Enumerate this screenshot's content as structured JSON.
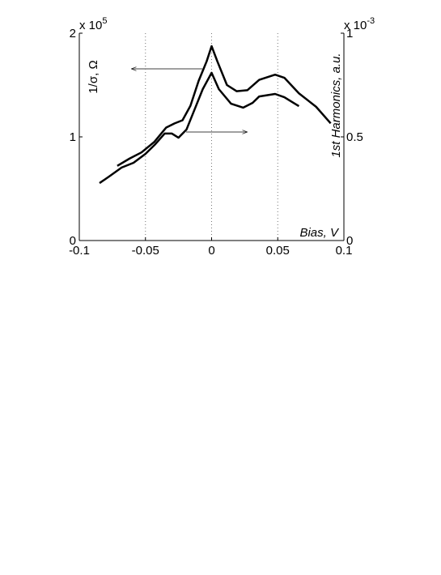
{
  "chart_data": {
    "type": "line",
    "xlabel": "Bias, V",
    "ylabel": "1/σ, Ω",
    "y2label": "1st Harmonics, a.u.",
    "y_multiplier": "x 10",
    "y_exponent": "5",
    "y2_multiplier": "x 10",
    "y2_exponent": "-3",
    "xlim": [
      -0.1,
      0.1
    ],
    "xticks": [
      -0.1,
      -0.05,
      0,
      0.05,
      0.1
    ],
    "ylim": [
      0,
      2
    ],
    "yticks": [
      0,
      1,
      2
    ],
    "y2lim": [
      0,
      1
    ],
    "y2ticks": [
      0,
      0.5,
      1
    ],
    "grid_x": [
      -0.05,
      0,
      0.05
    ],
    "series": [
      {
        "color": "#000000",
        "x": [
          -0.0713,
          -0.0621,
          -0.053,
          -0.0434,
          -0.0343,
          -0.028,
          -0.022,
          -0.016,
          -0.0098,
          -0.0037,
          0,
          0.0043,
          0.0116,
          0.019,
          0.027,
          0.036,
          0.048,
          0.055,
          0.066,
          0.079,
          0.09
        ],
        "values": [
          0.72,
          0.79,
          0.85,
          0.95,
          1.09,
          1.13,
          1.16,
          1.3,
          1.54,
          1.73,
          1.875,
          1.73,
          1.5,
          1.44,
          1.45,
          1.55,
          1.6,
          1.57,
          1.42,
          1.29,
          1.13
        ]
      },
      {
        "color": "#000000",
        "axis": "y2",
        "x": [
          -0.0847,
          -0.0774,
          -0.068,
          -0.059,
          -0.05,
          -0.0425,
          -0.0355,
          -0.03,
          -0.025,
          -0.019,
          -0.0128,
          -0.0067,
          0,
          0.0055,
          0.0147,
          0.0239,
          0.031,
          0.036,
          0.048,
          0.055,
          0.066
        ],
        "values": [
          0.277,
          0.309,
          0.352,
          0.375,
          0.418,
          0.465,
          0.516,
          0.516,
          0.496,
          0.535,
          0.633,
          0.73,
          0.809,
          0.73,
          0.66,
          0.641,
          0.664,
          0.695,
          0.707,
          0.691,
          0.648
        ]
      }
    ]
  }
}
